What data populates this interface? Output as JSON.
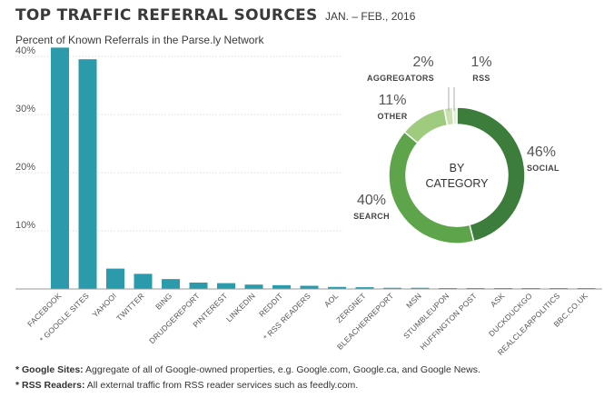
{
  "header": {
    "title": "TOP TRAFFIC REFERRAL SOURCES",
    "date": "JAN. – FEB., 2016",
    "subtitle": "Percent of Known Referrals in the Parse.ly Network"
  },
  "footnotes": [
    {
      "label": "* Google Sites:",
      "text": " Aggregate of all of Google-owned properties, e.g. Google.com, Google.ca, and Google News."
    },
    {
      "label": "* RSS Readers:",
      "text": " All external traffic from RSS reader services such as feedly.com."
    }
  ],
  "colors": {
    "bar": "#2b9aab",
    "social": "#3d7d3c",
    "search": "#5da44a",
    "other": "#9fcb7f",
    "aggregators": "#c9e1b1",
    "rss": "#e3efd6"
  },
  "chart_data": [
    {
      "type": "bar",
      "categories": [
        "FACEBOOK",
        "* GOOGLE SITES",
        "YAHOO!",
        "TWITTER",
        "BING",
        "DRUDGEREPORT",
        "PINTEREST",
        "LINKEDIN",
        "REDDIT",
        "* RSS READERS",
        "AOL",
        "ZERGNET",
        "BLEACHERREPORT",
        "MSN",
        "STUMBLEUPON",
        "HUFFINGTON POST",
        "ASK",
        "DUCKDUCKGO",
        "REALCLEARPOLITICS",
        "BBC.CO.UK"
      ],
      "values": [
        41.5,
        39.5,
        3.5,
        2.6,
        1.7,
        1.1,
        1.0,
        0.75,
        0.65,
        0.55,
        0.35,
        0.3,
        0.2,
        0.2,
        0.15,
        0.15,
        0.1,
        0.1,
        0.1,
        0.1
      ],
      "yticks": [
        "10%",
        "20%",
        "30%",
        "40%"
      ],
      "ytick_values": [
        10,
        20,
        30,
        40
      ],
      "ylim": [
        0,
        45
      ],
      "grid": true
    },
    {
      "type": "pie",
      "center_label": [
        "BY",
        "CATEGORY"
      ],
      "slices": [
        {
          "name": "SOCIAL",
          "value": 46,
          "label": "46%",
          "color_key": "social"
        },
        {
          "name": "SEARCH",
          "value": 40,
          "label": "40%",
          "color_key": "search"
        },
        {
          "name": "OTHER",
          "value": 11,
          "label": "11%",
          "color_key": "other"
        },
        {
          "name": "AGGREGATORS",
          "value": 2,
          "label": "2%",
          "color_key": "aggregators"
        },
        {
          "name": "RSS",
          "value": 1,
          "label": "1%",
          "color_key": "rss"
        }
      ]
    }
  ]
}
